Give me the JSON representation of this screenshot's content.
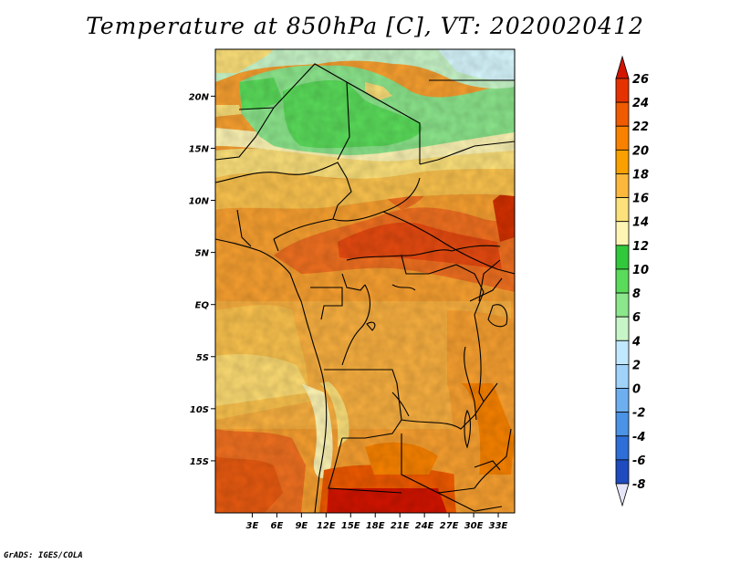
{
  "title": "Temperature at 850hPa [C], VT: 2020020412",
  "credit": "GrADS: IGES/COLA",
  "map": {
    "lon_range": [
      -1.5,
      35
    ],
    "lat_range": [
      -20,
      24.5
    ],
    "lon_ticks": [
      {
        "value": 3,
        "label": "3E"
      },
      {
        "value": 6,
        "label": "6E"
      },
      {
        "value": 9,
        "label": "9E"
      },
      {
        "value": 12,
        "label": "12E"
      },
      {
        "value": 15,
        "label": "15E"
      },
      {
        "value": 18,
        "label": "18E"
      },
      {
        "value": 21,
        "label": "21E"
      },
      {
        "value": 24,
        "label": "24E"
      },
      {
        "value": 27,
        "label": "27E"
      },
      {
        "value": 30,
        "label": "30E"
      },
      {
        "value": 33,
        "label": "33E"
      }
    ],
    "lat_ticks": [
      {
        "value": 20,
        "label": "20N"
      },
      {
        "value": 15,
        "label": "15N"
      },
      {
        "value": 10,
        "label": "10N"
      },
      {
        "value": 5,
        "label": "5N"
      },
      {
        "value": 0,
        "label": "EQ"
      },
      {
        "value": -5,
        "label": "5S"
      },
      {
        "value": -10,
        "label": "10S"
      },
      {
        "value": -15,
        "label": "15S"
      }
    ]
  },
  "colorbar": {
    "levels": [
      {
        "label": "26"
      },
      {
        "label": "24"
      },
      {
        "label": "22"
      },
      {
        "label": "20"
      },
      {
        "label": "18"
      },
      {
        "label": "16"
      },
      {
        "label": "14"
      },
      {
        "label": "12"
      },
      {
        "label": "10"
      },
      {
        "label": "8"
      },
      {
        "label": "6"
      },
      {
        "label": "4"
      },
      {
        "label": "2"
      },
      {
        "label": "0"
      },
      {
        "label": "-2"
      },
      {
        "label": "-4"
      },
      {
        "label": "-6"
      },
      {
        "label": "-8"
      }
    ],
    "colors": [
      "#d21400",
      "#e63200",
      "#f05a00",
      "#f88200",
      "#faa000",
      "#fbb83c",
      "#fde17a",
      "#fef5b4",
      "#32c83c",
      "#5adc5a",
      "#8ce68c",
      "#c8f5c8",
      "#c0e8ff",
      "#a0d2fa",
      "#6eaff0",
      "#4b93e6",
      "#2d6ed7",
      "#1e4bbe",
      "#0a1e96",
      "#000064"
    ]
  }
}
